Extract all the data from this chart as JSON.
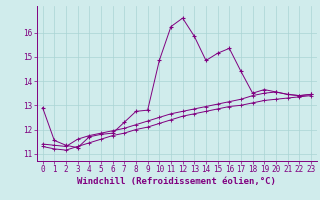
{
  "x": [
    0,
    1,
    2,
    3,
    4,
    5,
    6,
    7,
    8,
    9,
    10,
    11,
    12,
    13,
    14,
    15,
    16,
    17,
    18,
    19,
    20,
    21,
    22,
    23
  ],
  "line1": [
    12.9,
    11.55,
    11.35,
    11.25,
    11.7,
    11.8,
    11.85,
    12.3,
    12.75,
    12.8,
    14.85,
    16.25,
    16.6,
    15.85,
    14.85,
    15.15,
    15.35,
    14.4,
    13.5,
    13.65,
    13.55,
    13.45,
    13.4,
    13.45
  ],
  "line2": [
    11.4,
    11.35,
    11.3,
    11.6,
    11.75,
    11.85,
    11.95,
    12.05,
    12.2,
    12.35,
    12.5,
    12.65,
    12.75,
    12.85,
    12.95,
    13.05,
    13.15,
    13.25,
    13.4,
    13.5,
    13.55,
    13.45,
    13.4,
    13.45
  ],
  "line3": [
    11.3,
    11.2,
    11.15,
    11.3,
    11.45,
    11.6,
    11.75,
    11.85,
    12.0,
    12.1,
    12.25,
    12.4,
    12.55,
    12.65,
    12.75,
    12.85,
    12.95,
    13.0,
    13.1,
    13.2,
    13.25,
    13.3,
    13.35,
    13.4
  ],
  "color": "#800080",
  "bg_color": "#d0ecec",
  "grid_color": "#aad4d4",
  "xlabel": "Windchill (Refroidissement éolien,°C)",
  "tick_fontsize": 5.5,
  "xlabel_fontsize": 6.5,
  "yticks": [
    11,
    12,
    13,
    14,
    15,
    16
  ],
  "xlim": [
    -0.5,
    23.5
  ],
  "ylim": [
    10.7,
    17.1
  ]
}
